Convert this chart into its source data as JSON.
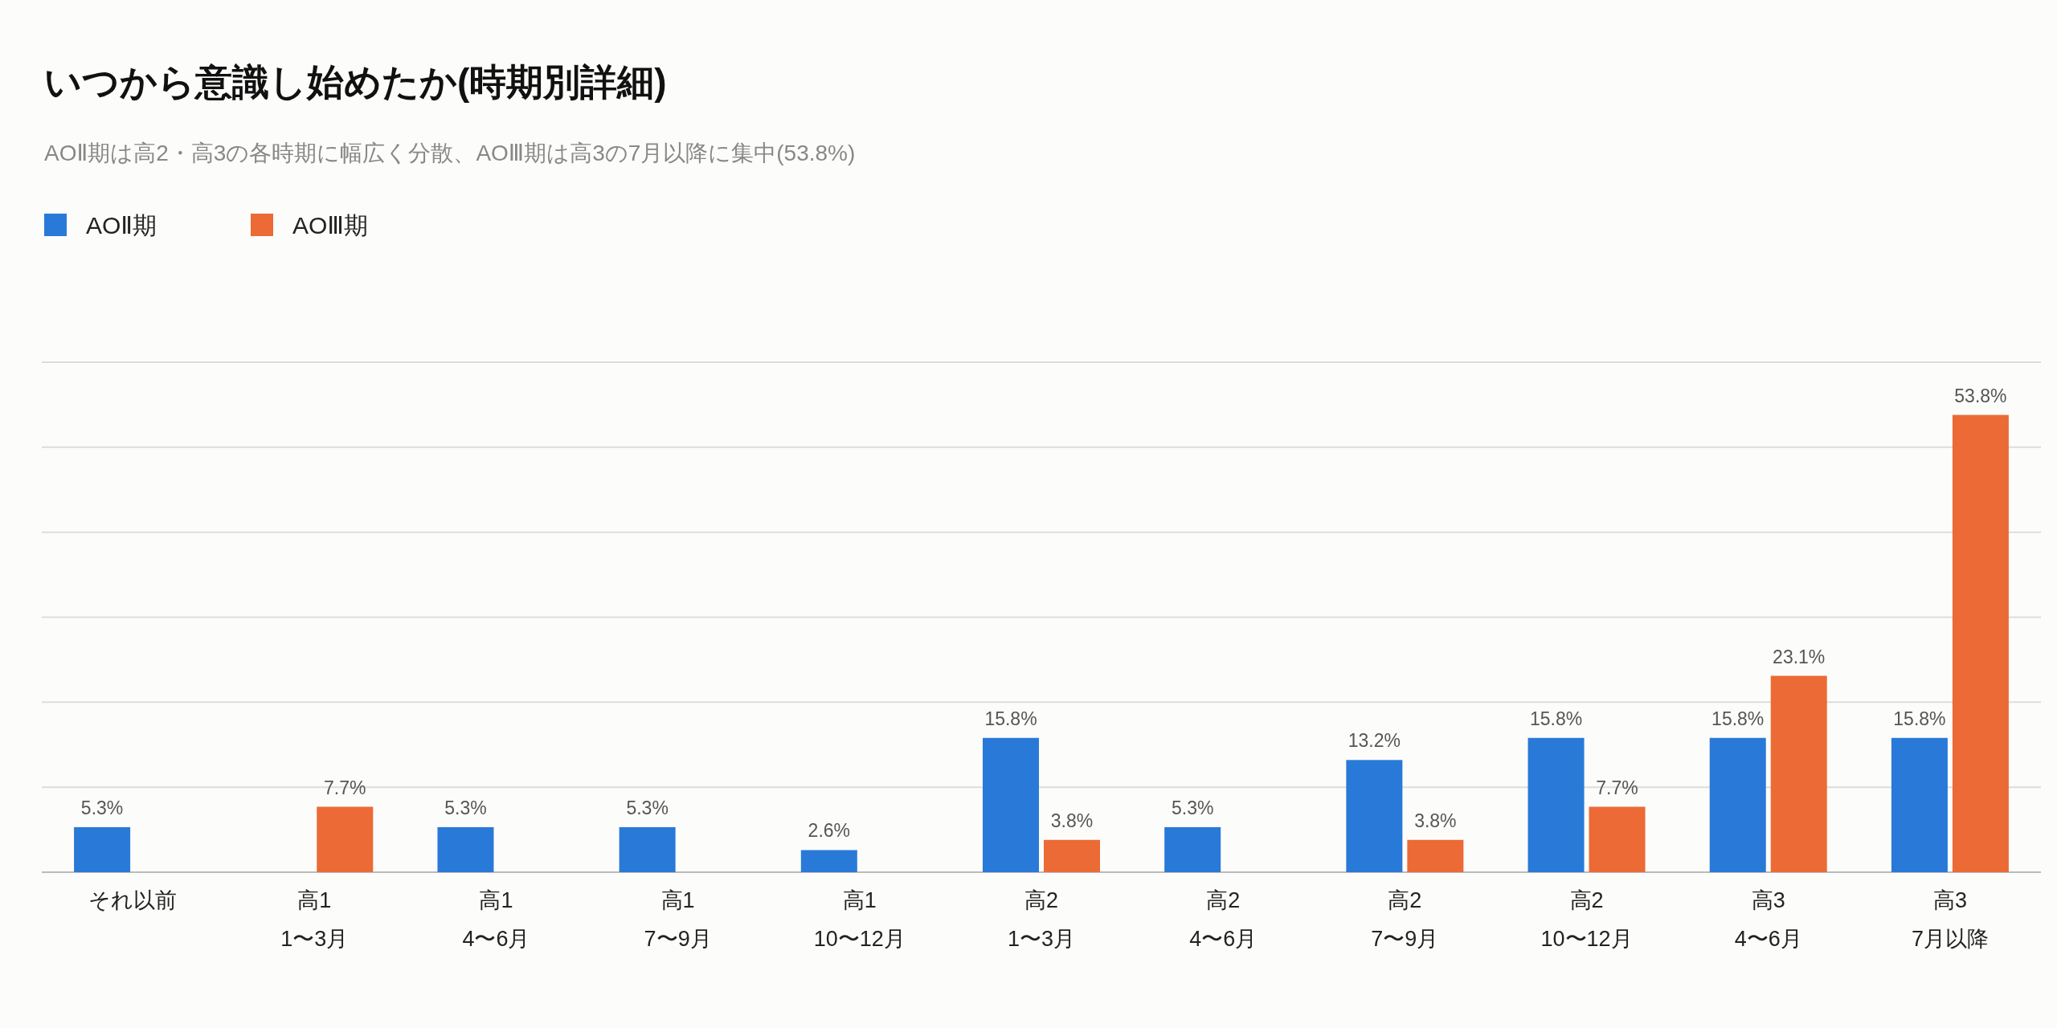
{
  "chart_data": {
    "type": "bar",
    "title": "いつから意識し始めたか(時期別詳細)",
    "subtitle": "AOⅡ期は高2・高3の各時期に幅広く分散、AOⅢ期は高3の7月以降に集中(53.8%)",
    "categories": [
      "それ以前",
      "高1\n1〜3月",
      "高1\n4〜6月",
      "高1\n7〜9月",
      "高1\n10〜12月",
      "高2\n1〜3月",
      "高2\n4〜6月",
      "高2\n7〜9月",
      "高2\n10〜12月",
      "高3\n4〜6月",
      "高3\n7月以降"
    ],
    "series": [
      {
        "name": "AOⅡ期",
        "color": "#2979d8",
        "values": [
          5.3,
          null,
          5.3,
          5.3,
          2.6,
          15.8,
          5.3,
          13.2,
          15.8,
          15.8,
          15.8
        ],
        "value_labels": [
          "5.3%",
          null,
          "5.3%",
          "5.3%",
          "2.6%",
          "15.8%",
          "5.3%",
          "13.2%",
          "15.8%",
          "15.8%",
          "15.8%"
        ]
      },
      {
        "name": "AOⅢ期",
        "color": "#ec6a35",
        "values": [
          null,
          7.7,
          null,
          null,
          null,
          3.8,
          null,
          3.8,
          7.7,
          23.1,
          53.8
        ],
        "value_labels": [
          null,
          "7.7%",
          null,
          null,
          null,
          "3.8%",
          null,
          "3.8%",
          "7.7%",
          "23.1%",
          "53.8%"
        ]
      }
    ],
    "ylim": [
      0,
      60
    ],
    "yticks": [
      {
        "value": 0,
        "label": null
      },
      {
        "value": 10,
        "label": null
      },
      {
        "value": 20,
        "label": null
      },
      {
        "value": 30,
        "label": null
      },
      {
        "value": 40,
        "label": null
      },
      {
        "value": 50,
        "label": null
      },
      {
        "value": 60,
        "label": null
      }
    ],
    "grid": "y",
    "legend": "top left",
    "tick_labels": "x"
  }
}
